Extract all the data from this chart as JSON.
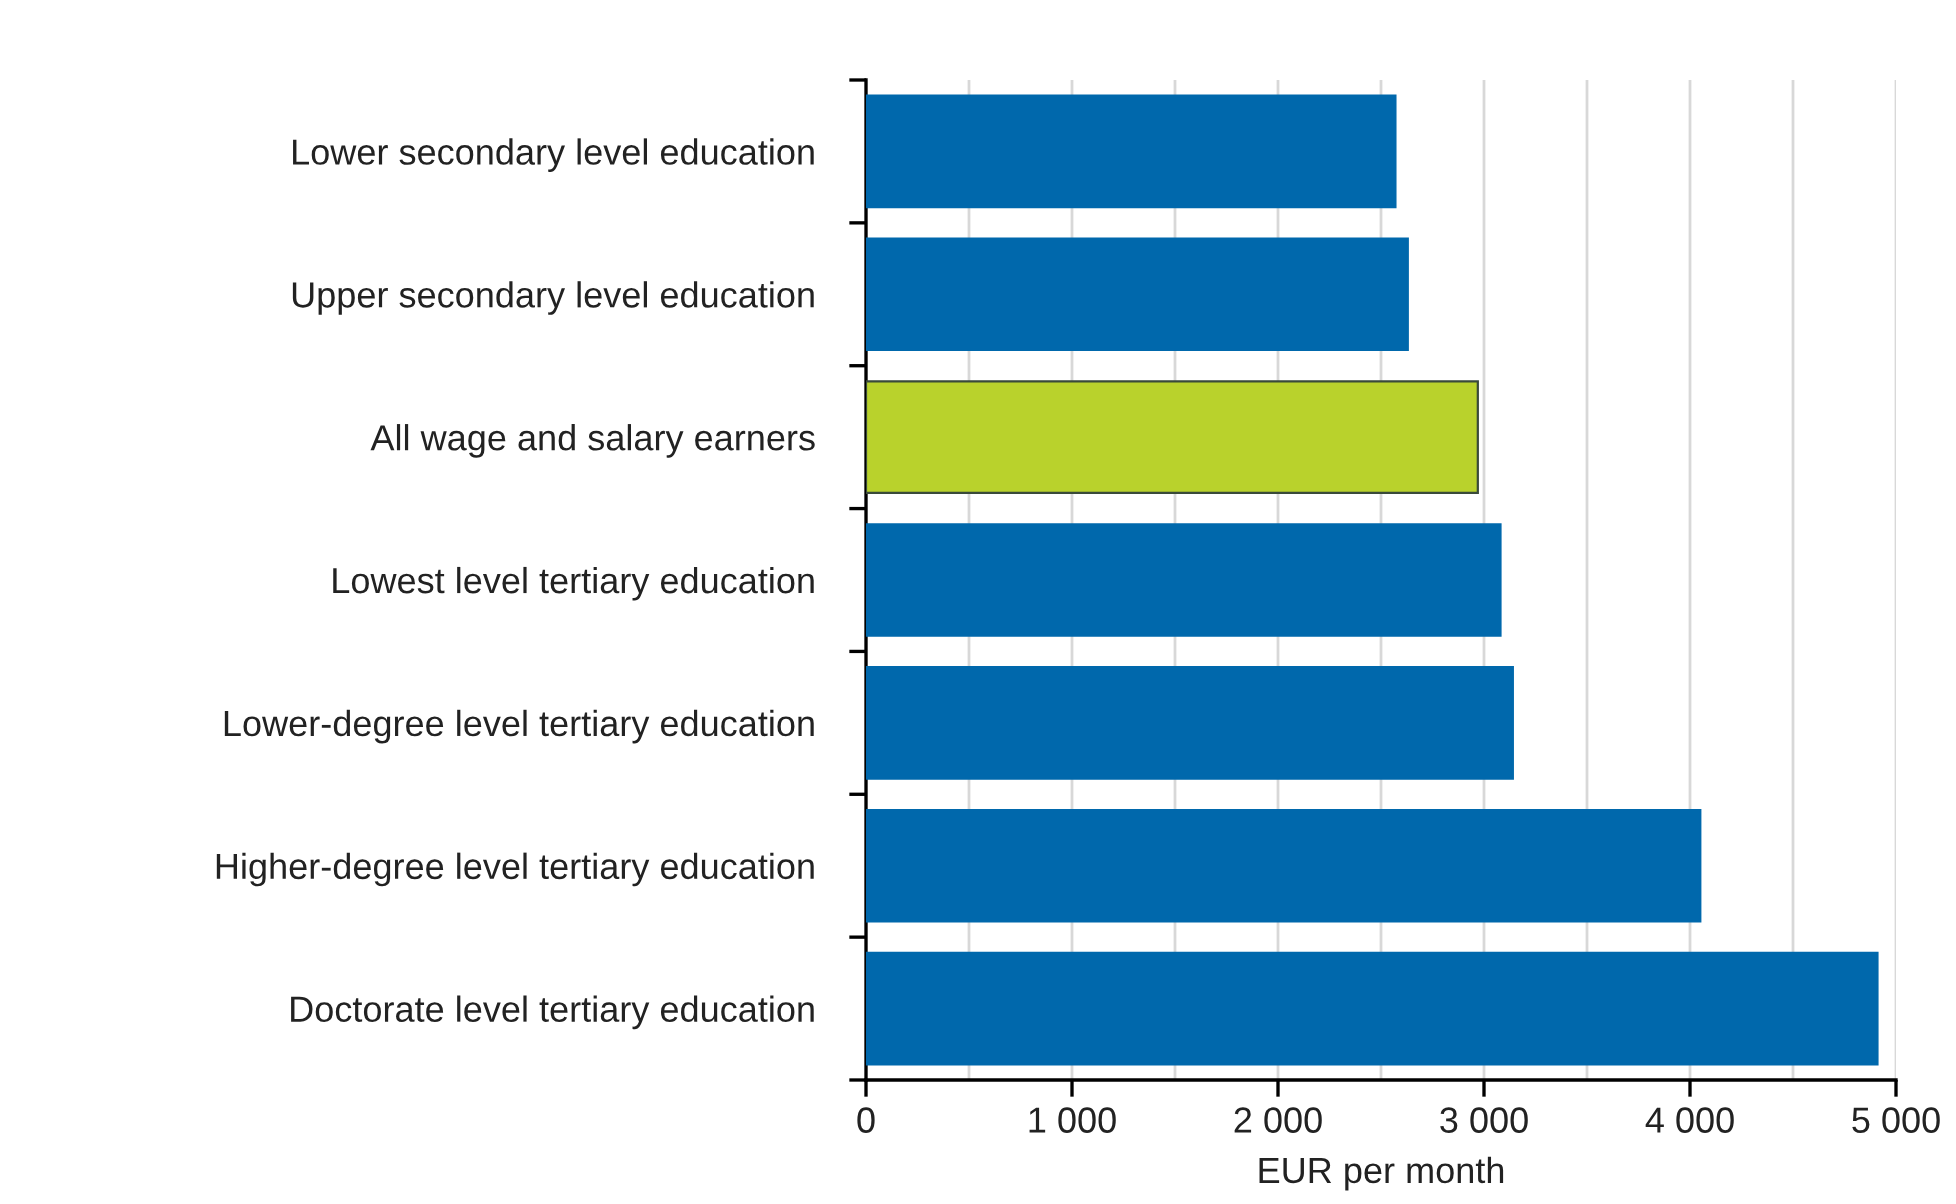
{
  "chart_data": {
    "type": "bar",
    "orientation": "horizontal",
    "xlabel": "EUR per month",
    "categories": [
      "Lower secondary level education",
      "Upper secondary level education",
      "All wage and salary earners",
      "Lowest level tertiary education",
      "Lower-degree level tertiary education",
      "Higher-degree level tertiary education",
      "Doctorate level tertiary education"
    ],
    "values": [
      2570,
      2630,
      2970,
      3080,
      3140,
      4050,
      4910
    ],
    "colors": [
      "#0068ac",
      "#0068ac",
      "#b9d22c",
      "#0068ac",
      "#0068ac",
      "#0068ac",
      "#0068ac"
    ],
    "xlim": [
      0,
      5000
    ],
    "xticks": [
      0,
      {
        "value": 500,
        "label": null
      },
      {
        "value": 1000,
        "label": "1 000"
      },
      {
        "value": 1500,
        "label": null
      },
      {
        "value": 2000,
        "label": "2 000"
      },
      {
        "value": 2500,
        "label": null
      },
      {
        "value": 3000,
        "label": "3 000"
      },
      {
        "value": 3500,
        "label": null
      },
      {
        "value": 4000,
        "label": "4 000"
      },
      {
        "value": 4500,
        "label": null
      },
      {
        "value": 5000,
        "label": "5 000"
      }
    ],
    "grid": "x",
    "legend": false
  }
}
